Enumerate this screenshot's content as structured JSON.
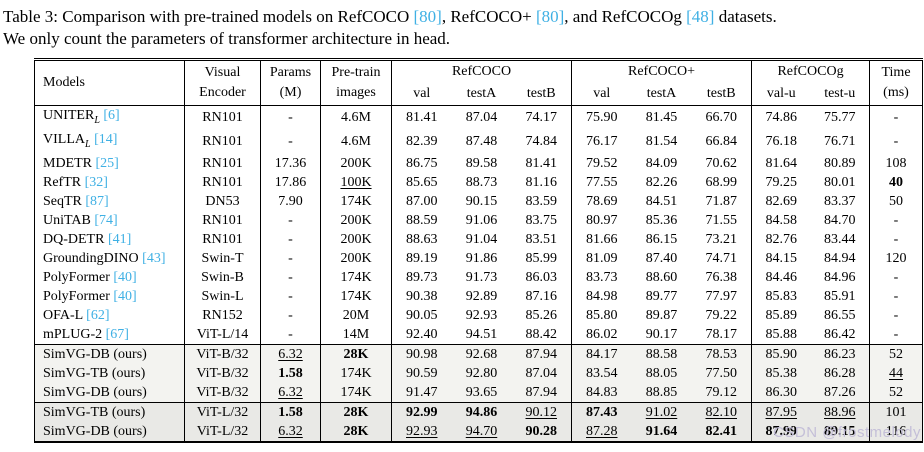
{
  "colors": {
    "citation": "#3fb0e4",
    "shade_light": "#f3f3f0",
    "shade_dark": "#e9e9e6",
    "watermark": "#c4bfd8"
  },
  "watermark": "CSDN @frostmelody",
  "caption": {
    "parts": [
      {
        "t": "Table 3: Comparison with pre-trained models on RefCOCO ",
        "cite": false
      },
      {
        "t": "[80]",
        "cite": true
      },
      {
        "t": ", RefCOCO+ ",
        "cite": false
      },
      {
        "t": "[80]",
        "cite": true
      },
      {
        "t": ", and RefCOCOg ",
        "cite": false
      },
      {
        "t": "[48]",
        "cite": true
      },
      {
        "t": " datasets.",
        "cite": false
      },
      {
        "t": "We only count the parameters of transformer architecture in head.",
        "cite": false
      }
    ]
  },
  "header": {
    "models": "Models",
    "encoder_l1": "Visual",
    "encoder_l2": "Encoder",
    "params_l1": "Params",
    "params_l2": "(M)",
    "pretrain_l1": "Pre-train",
    "pretrain_l2": "images",
    "groups": [
      {
        "label": "RefCOCO",
        "cols": [
          "val",
          "testA",
          "testB"
        ]
      },
      {
        "label": "RefCOCO+",
        "cols": [
          "val",
          "testA",
          "testB"
        ]
      },
      {
        "label": "RefCOCOg",
        "cols": [
          "val-u",
          "test-u"
        ]
      }
    ],
    "time_l1": "Time",
    "time_l2": "(ms)"
  },
  "rows": [
    {
      "model": {
        "name": "UNITER",
        "sub": "L",
        "cite": "[6]"
      },
      "encoder": "RN101",
      "params": "-",
      "pretrain": "4.6M",
      "refcoco": [
        "81.41",
        "87.04",
        "74.17"
      ],
      "refcocop": [
        "75.90",
        "81.45",
        "66.70"
      ],
      "refcocog": [
        "74.86",
        "75.77"
      ],
      "time": "-"
    },
    {
      "model": {
        "name": "VILLA",
        "sub": "L",
        "cite": "[14]"
      },
      "encoder": "RN101",
      "params": "-",
      "pretrain": "4.6M",
      "refcoco": [
        "82.39",
        "87.48",
        "74.84"
      ],
      "refcocop": [
        "76.17",
        "81.54",
        "66.84"
      ],
      "refcocog": [
        "76.18",
        "76.71"
      ],
      "time": "-"
    },
    {
      "model": {
        "name": "MDETR",
        "cite": "[25]"
      },
      "encoder": "RN101",
      "params": "17.36",
      "pretrain": "200K",
      "refcoco": [
        "86.75",
        "89.58",
        "81.41"
      ],
      "refcocop": [
        "79.52",
        "84.09",
        "70.62"
      ],
      "refcocog": [
        "81.64",
        "80.89"
      ],
      "time": "108"
    },
    {
      "model": {
        "name": "RefTR",
        "cite": "[32]"
      },
      "encoder": "RN101",
      "params": "17.86",
      "pretrain": {
        "v": "100K",
        "u": true
      },
      "refcoco": [
        "85.65",
        "88.73",
        "81.16"
      ],
      "refcocop": [
        "77.55",
        "82.26",
        "68.99"
      ],
      "refcocog": [
        "79.25",
        "80.01"
      ],
      "time": {
        "v": "40",
        "b": true
      }
    },
    {
      "model": {
        "name": "SeqTR",
        "cite": "[87]"
      },
      "encoder": "DN53",
      "params": "7.90",
      "pretrain": "174K",
      "refcoco": [
        "87.00",
        "90.15",
        "83.59"
      ],
      "refcocop": [
        "78.69",
        "84.51",
        "71.87"
      ],
      "refcocog": [
        "82.69",
        "83.37"
      ],
      "time": "50"
    },
    {
      "model": {
        "name": "UniTAB",
        "cite": "[74]"
      },
      "encoder": "RN101",
      "params": "-",
      "pretrain": "200K",
      "refcoco": [
        "88.59",
        "91.06",
        "83.75"
      ],
      "refcocop": [
        "80.97",
        "85.36",
        "71.55"
      ],
      "refcocog": [
        "84.58",
        "84.70"
      ],
      "time": "-"
    },
    {
      "model": {
        "name": "DQ-DETR",
        "cite": "[41]"
      },
      "encoder": "RN101",
      "params": "-",
      "pretrain": "200K",
      "refcoco": [
        "88.63",
        "91.04",
        "83.51"
      ],
      "refcocop": [
        "81.66",
        "86.15",
        "73.21"
      ],
      "refcocog": [
        "82.76",
        "83.44"
      ],
      "time": "-"
    },
    {
      "model": {
        "name": "GroundingDINO",
        "cite": "[43]"
      },
      "encoder": "Swin-T",
      "params": "-",
      "pretrain": "200K",
      "refcoco": [
        "89.19",
        "91.86",
        "85.99"
      ],
      "refcocop": [
        "81.09",
        "87.40",
        "74.71"
      ],
      "refcocog": [
        "84.15",
        "84.94"
      ],
      "time": "120"
    },
    {
      "model": {
        "name": "PolyFormer",
        "cite": "[40]"
      },
      "encoder": "Swin-B",
      "params": "-",
      "pretrain": "174K",
      "refcoco": [
        "89.73",
        "91.73",
        "86.03"
      ],
      "refcocop": [
        "83.73",
        "88.60",
        "76.38"
      ],
      "refcocog": [
        "84.46",
        "84.96"
      ],
      "time": "-"
    },
    {
      "model": {
        "name": "PolyFormer",
        "cite": "[40]"
      },
      "encoder": "Swin-L",
      "params": "-",
      "pretrain": "174K",
      "refcoco": [
        "90.38",
        "92.89",
        "87.16"
      ],
      "refcocop": [
        "84.98",
        "89.77",
        "77.97"
      ],
      "refcocog": [
        "85.83",
        "85.91"
      ],
      "time": "-"
    },
    {
      "model": {
        "name": "OFA-L",
        "cite": "[62]"
      },
      "encoder": "RN152",
      "params": "-",
      "pretrain": "20M",
      "refcoco": [
        "90.05",
        "92.93",
        "85.26"
      ],
      "refcocop": [
        "85.80",
        "89.87",
        "79.22"
      ],
      "refcocog": [
        "85.89",
        "86.55"
      ],
      "time": "-"
    },
    {
      "model": {
        "name": "mPLUG-2",
        "cite": "[67]"
      },
      "encoder": "ViT-L/14",
      "params": "-",
      "pretrain": "14M",
      "refcoco": [
        "92.40",
        "94.51",
        "88.42"
      ],
      "refcocop": [
        "86.02",
        "90.17",
        "78.17"
      ],
      "refcocog": [
        "85.88",
        "86.42"
      ],
      "time": "-"
    },
    {
      "model": {
        "name": "SimVG-DB (ours)"
      },
      "encoder": "ViT-B/32",
      "params": {
        "v": "6.32",
        "u": true
      },
      "pretrain": {
        "v": "28K",
        "b": true
      },
      "refcoco": [
        "90.98",
        "92.68",
        "87.94"
      ],
      "refcocop": [
        "84.17",
        "88.58",
        "78.53"
      ],
      "refcocog": [
        "85.90",
        "86.23"
      ],
      "time": "52",
      "shade": "light",
      "rule_above": true
    },
    {
      "model": {
        "name": "SimVG-TB (ours)"
      },
      "encoder": "ViT-B/32",
      "params": {
        "v": "1.58",
        "b": true
      },
      "pretrain": "174K",
      "refcoco": [
        "90.59",
        "92.80",
        "87.04"
      ],
      "refcocop": [
        "83.54",
        "88.05",
        "77.50"
      ],
      "refcocog": [
        "85.38",
        "86.28"
      ],
      "time": {
        "v": "44",
        "u": true
      },
      "shade": "light"
    },
    {
      "model": {
        "name": "SimVG-DB (ours)"
      },
      "encoder": "ViT-B/32",
      "params": {
        "v": "6.32",
        "u": true
      },
      "pretrain": "174K",
      "refcoco": [
        "91.47",
        "93.65",
        "87.94"
      ],
      "refcocop": [
        "84.83",
        "88.85",
        "79.12"
      ],
      "refcocog": [
        "86.30",
        "87.26"
      ],
      "time": "52",
      "shade": "light"
    },
    {
      "model": {
        "name": "SimVG-TB (ours)"
      },
      "encoder": "ViT-L/32",
      "params": {
        "v": "1.58",
        "b": true
      },
      "pretrain": {
        "v": "28K",
        "b": true
      },
      "refcoco": [
        {
          "v": "92.99",
          "b": true
        },
        {
          "v": "94.86",
          "b": true
        },
        {
          "v": "90.12",
          "u": true
        }
      ],
      "refcocop": [
        {
          "v": "87.43",
          "b": true
        },
        {
          "v": "91.02",
          "u": true
        },
        {
          "v": "82.10",
          "u": true
        }
      ],
      "refcocog": [
        {
          "v": "87.95",
          "u": true
        },
        {
          "v": "88.96",
          "u": true
        }
      ],
      "time": "101",
      "shade": "dark",
      "rule_above": true
    },
    {
      "model": {
        "name": "SimVG-DB (ours)"
      },
      "encoder": "ViT-L/32",
      "params": {
        "v": "6.32",
        "u": true
      },
      "pretrain": {
        "v": "28K",
        "b": true
      },
      "refcoco": [
        {
          "v": "92.93",
          "u": true
        },
        {
          "v": "94.70",
          "u": true
        },
        {
          "v": "90.28",
          "b": true
        }
      ],
      "refcocop": [
        {
          "v": "87.28",
          "u": true
        },
        {
          "v": "91.64",
          "b": true
        },
        {
          "v": "82.41",
          "b": true
        }
      ],
      "refcocog": [
        {
          "v": "87.99",
          "b": true
        },
        {
          "v": "89.15",
          "b": true
        }
      ],
      "time": "116",
      "shade": "dark"
    }
  ]
}
